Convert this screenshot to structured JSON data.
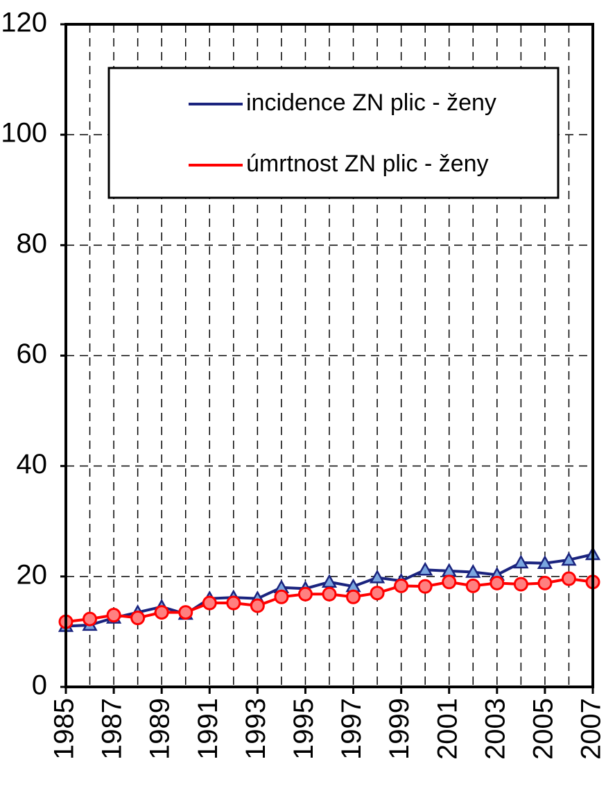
{
  "chart_data": {
    "type": "line",
    "x": [
      1985,
      1986,
      1987,
      1988,
      1989,
      1990,
      1991,
      1992,
      1993,
      1994,
      1995,
      1996,
      1997,
      1998,
      1999,
      2000,
      2001,
      2002,
      2003,
      2004,
      2005,
      2006,
      2007
    ],
    "series": [
      {
        "name": "incidence ZN plic - ženy",
        "color": "#1a237e",
        "marker": "triangle",
        "values": [
          11,
          11.2,
          12.5,
          13.5,
          14.5,
          13.2,
          16,
          16.2,
          16,
          18,
          17.8,
          19,
          18.2,
          19.8,
          19.2,
          21.2,
          21,
          20.8,
          20.3,
          22.5,
          22.4,
          23,
          24
        ]
      },
      {
        "name": "úmrtnost ZN plic - ženy",
        "color": "#ff0000",
        "marker": "circle",
        "values": [
          11.8,
          12.3,
          13,
          12.5,
          13.5,
          13.5,
          15.2,
          15.2,
          14.7,
          16.3,
          16.8,
          16.8,
          16.3,
          17,
          18.3,
          18.2,
          19,
          18.3,
          18.8,
          18.6,
          18.8,
          19.6,
          19
        ]
      }
    ],
    "xlim": [
      1985,
      2007
    ],
    "xticks": [
      1985,
      1987,
      1989,
      1991,
      1993,
      1995,
      1997,
      1999,
      2001,
      2003,
      2005,
      2007
    ],
    "ylim": [
      0,
      120
    ],
    "yticks": [
      0,
      20,
      40,
      60,
      80,
      100,
      120
    ],
    "grid": true
  }
}
